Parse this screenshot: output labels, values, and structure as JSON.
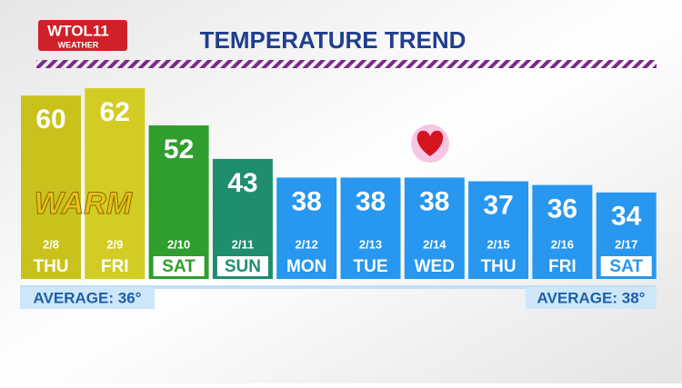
{
  "chart_data": {
    "type": "bar",
    "title": "TEMPERATURE TREND",
    "logo": "WTOL11",
    "logo_sub": "WEATHER",
    "categories": [
      "2/8",
      "2/9",
      "2/10",
      "2/11",
      "2/12",
      "2/13",
      "2/14",
      "2/15",
      "2/16",
      "2/17"
    ],
    "days": [
      "THU",
      "FRI",
      "SAT",
      "SUN",
      "MON",
      "TUE",
      "WED",
      "THU",
      "FRI",
      "SAT"
    ],
    "values": [
      60,
      62,
      52,
      43,
      38,
      38,
      38,
      37,
      36,
      34
    ],
    "colors": [
      "#c9c21c",
      "#d3cc25",
      "#2f9e2c",
      "#1f8e6e",
      "#2797ef",
      "#2797ef",
      "#2797ef",
      "#2797ef",
      "#2797ef",
      "#2797ef"
    ],
    "boxed_days": [
      false,
      false,
      true,
      true,
      false,
      false,
      false,
      false,
      false,
      true
    ],
    "annotation": "WARM",
    "average_left": "AVERAGE: 36°",
    "average_right": "AVERAGE: 38°"
  }
}
